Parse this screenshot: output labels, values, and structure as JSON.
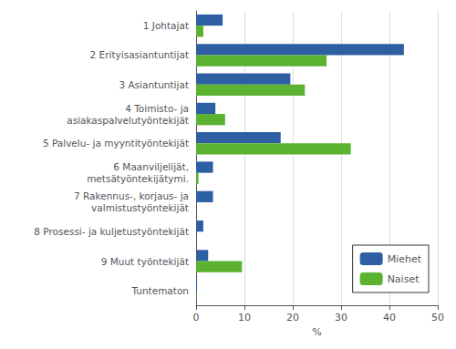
{
  "chart_data": {
    "type": "bar",
    "orientation": "horizontal",
    "categories": [
      "Tuntematon",
      "9 Muut työntekijät",
      "8 Prosessi- ja kuljetustyöntekijät",
      "7 Rakennus-, korjaus- ja\nvalmistustyöntekijät",
      "6 Maanviljelijät,\nmetsätyöntekijätymi.",
      "5 Palvelu- ja myyntityöntekijät",
      "4 Toimisto- ja\nasiakaspalvelutyöntekijät",
      "3 Asiantuntijat",
      "2 Erityisasiantuntijat",
      "1 Johtajat"
    ],
    "series": [
      {
        "name": "Miehet",
        "color": "#2E5FA3",
        "values": [
          0.2,
          2.5,
          1.5,
          3.5,
          3.5,
          17.5,
          4.0,
          19.5,
          43.0,
          5.5
        ]
      },
      {
        "name": "Naiset",
        "color": "#5AB230",
        "values": [
          0.1,
          9.5,
          0.0,
          0.0,
          0.5,
          32.0,
          6.0,
          22.5,
          27.0,
          1.5
        ]
      }
    ],
    "xlabel": "%",
    "xlim": [
      0,
      50
    ],
    "xticks": [
      0,
      10,
      20,
      30,
      40,
      50
    ],
    "grid": true,
    "legend": "lower right"
  }
}
